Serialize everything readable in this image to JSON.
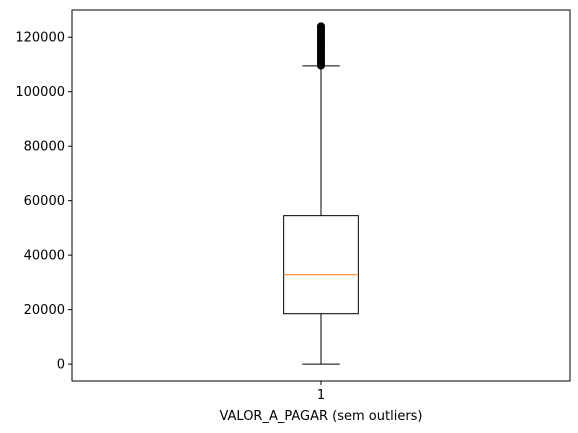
{
  "chart_data": {
    "type": "boxplot",
    "title": "",
    "xlabel": "VALOR_A_PAGAR (sem outliers)",
    "ylabel": "",
    "categories": [
      "1"
    ],
    "ylim": [
      -6200,
      130000
    ],
    "xlim": [
      0.5,
      1.5
    ],
    "yticks": [
      0,
      20000,
      40000,
      60000,
      80000,
      100000,
      120000
    ],
    "ytick_labels": [
      "0",
      "20000",
      "40000",
      "60000",
      "80000",
      "100000",
      "120000"
    ],
    "grid": false,
    "box": {
      "position": 1,
      "whisker_low": 0,
      "q1": 18500,
      "median": 32800,
      "q3": 54500,
      "whisker_high": 109500,
      "outliers": [
        109600,
        110200,
        110900,
        111600,
        112300,
        113000,
        113700,
        114400,
        115100,
        115800,
        116500,
        117200,
        117900,
        118600,
        119300,
        120000,
        120700,
        121400,
        122100,
        122800,
        123500,
        124000
      ]
    },
    "colors": {
      "box": "#000000",
      "median": "#ff7f0e",
      "outliers": "#000000"
    }
  }
}
